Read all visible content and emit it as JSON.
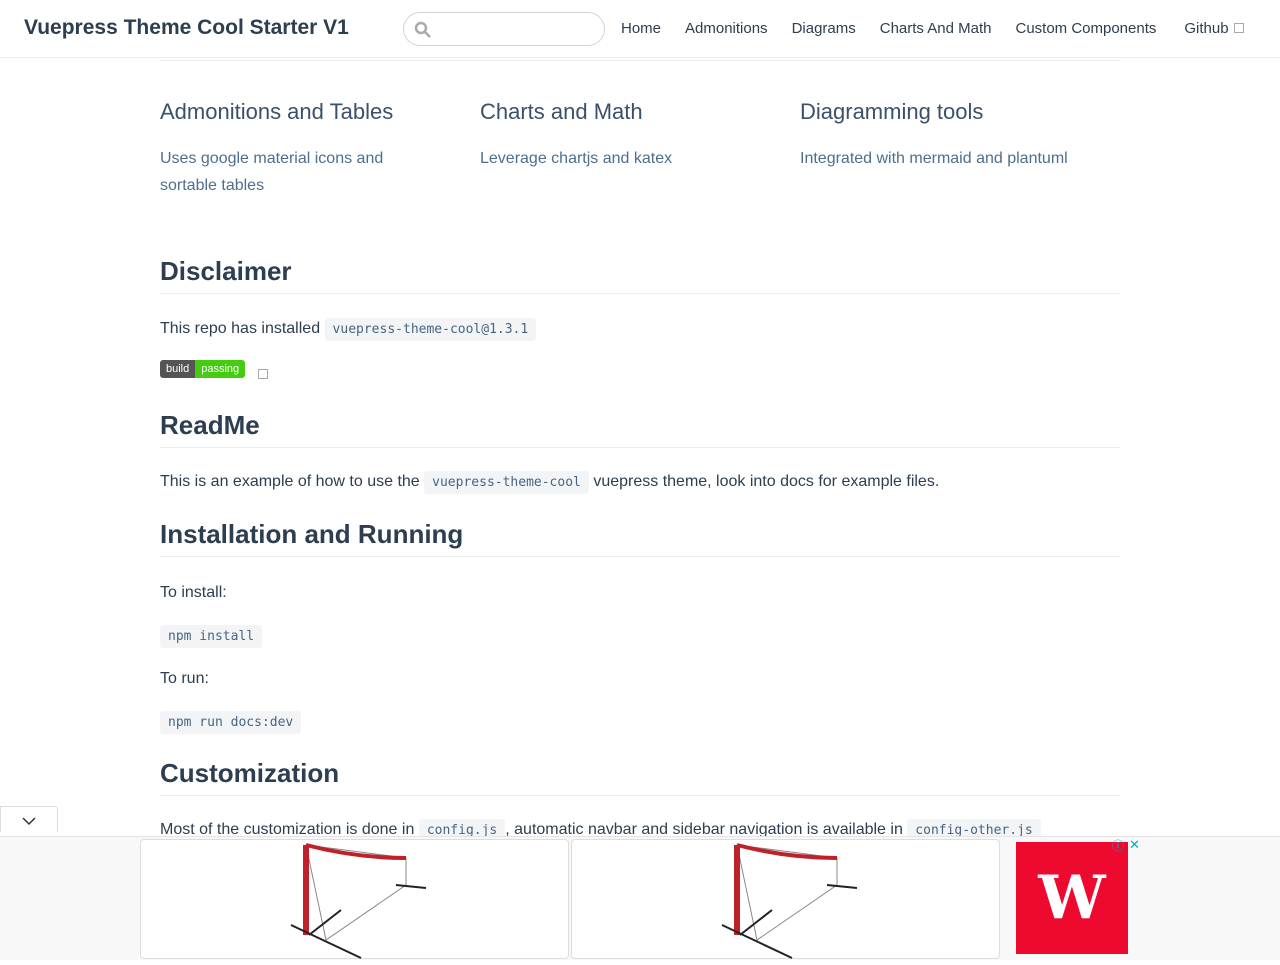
{
  "navbar": {
    "title": "Vuepress Theme Cool Starter V1",
    "search_placeholder": "",
    "links": [
      "Home",
      "Admonitions",
      "Diagrams",
      "Charts And Math",
      "Custom Components",
      "Github"
    ]
  },
  "features": [
    {
      "title": "Admonitions and Tables",
      "details": "Uses google material icons and sortable tables"
    },
    {
      "title": "Charts and Math",
      "details": "Leverage chartjs and katex"
    },
    {
      "title": "Diagramming tools",
      "details": "Integrated with mermaid and plantuml"
    }
  ],
  "disclaimer": {
    "heading": "Disclaimer",
    "text": "This repo has installed",
    "code": "vuepress-theme-cool@1.3.1",
    "badge_left": "build",
    "badge_right": "passing"
  },
  "readme": {
    "heading": "ReadMe",
    "text_before": "This is an example of how to use the",
    "code": "vuepress-theme-cool",
    "text_after": "vuepress theme, look into docs for example files."
  },
  "install": {
    "heading": "Installation and Running",
    "install_label": "To install:",
    "install_cmd": "npm install",
    "run_label": "To run:",
    "run_cmd": "npm run docs:dev"
  },
  "custom": {
    "heading": "Customization",
    "text1": "Most of the customization is done in",
    "code1": "config.js",
    "text2": ", automatic navbar and sidebar navigation is available in",
    "code2": "config-other.js"
  },
  "ad": {
    "logo_letter": "W",
    "colors": {
      "brand": "#ee0a2f"
    }
  }
}
